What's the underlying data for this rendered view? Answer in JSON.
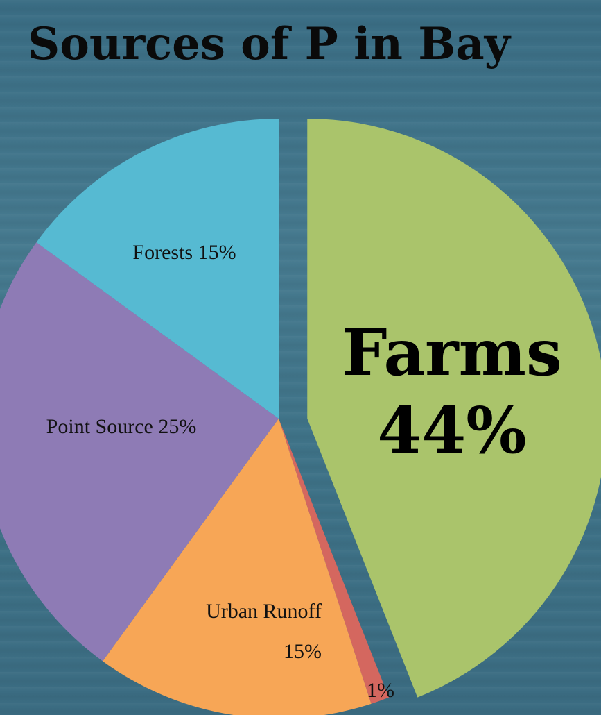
{
  "chart_data": {
    "type": "pie",
    "title": "Sources of P in Bay",
    "slices": [
      {
        "name": "Farms",
        "value": 44,
        "label_lines": [
          "Farms",
          "44%"
        ],
        "color": "#aac46b",
        "exploded": true,
        "emphasis": true
      },
      {
        "name": "",
        "value": 1,
        "label_lines": [
          "1%"
        ],
        "color": "#d4675f",
        "exploded": false,
        "emphasis": false
      },
      {
        "name": "Urban Runoff",
        "value": 15,
        "label_lines": [
          "Urban Runoff",
          "15%"
        ],
        "color": "#f7a656",
        "exploded": false,
        "emphasis": false
      },
      {
        "name": "Point Source",
        "value": 25,
        "label_lines": [
          "Point Source 25%"
        ],
        "color": "#8e7bb5",
        "exploded": false,
        "emphasis": false
      },
      {
        "name": "Forests",
        "value": 15,
        "label_lines": [
          "Forests 15%"
        ],
        "color": "#56bad2",
        "exploded": false,
        "emphasis": false
      }
    ],
    "start_angle": "12 o'clock",
    "direction": "clockwise",
    "legend": "none"
  }
}
